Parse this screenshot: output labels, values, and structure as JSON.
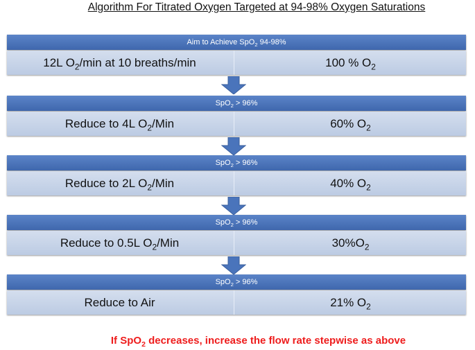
{
  "title": "Algorithm For Titrated Oxygen Targeted at 94-98% Oxygen Saturations",
  "steps": [
    {
      "header": [
        "Aim to Achieve SpO",
        "2",
        " 94-98%"
      ],
      "left": [
        "12L O",
        "2",
        "/min at 10 breaths/min"
      ],
      "right": [
        "100 % O",
        "2"
      ]
    },
    {
      "header": [
        "SpO",
        "2",
        " > 96%"
      ],
      "left": [
        "Reduce to 4L O",
        "2",
        "/Min"
      ],
      "right": [
        "60% O",
        "2"
      ]
    },
    {
      "header": [
        "SpO",
        "2",
        " > 96%"
      ],
      "left": [
        "Reduce to 2L O",
        "2",
        "/Min"
      ],
      "right": [
        "40% O",
        "2"
      ]
    },
    {
      "header": [
        "SpO",
        "2",
        " > 96%"
      ],
      "left": [
        "Reduce to 0.5L O",
        "2",
        "/Min"
      ],
      "right": [
        "30%O",
        "2"
      ]
    },
    {
      "header": [
        "SpO",
        "2",
        " > 96%"
      ],
      "left": [
        "Reduce to Air"
      ],
      "right": [
        "21% O",
        "2"
      ]
    }
  ],
  "footer": [
    "If SpO",
    "2",
    " decreases, increase the flow rate stepwise as above"
  ]
}
